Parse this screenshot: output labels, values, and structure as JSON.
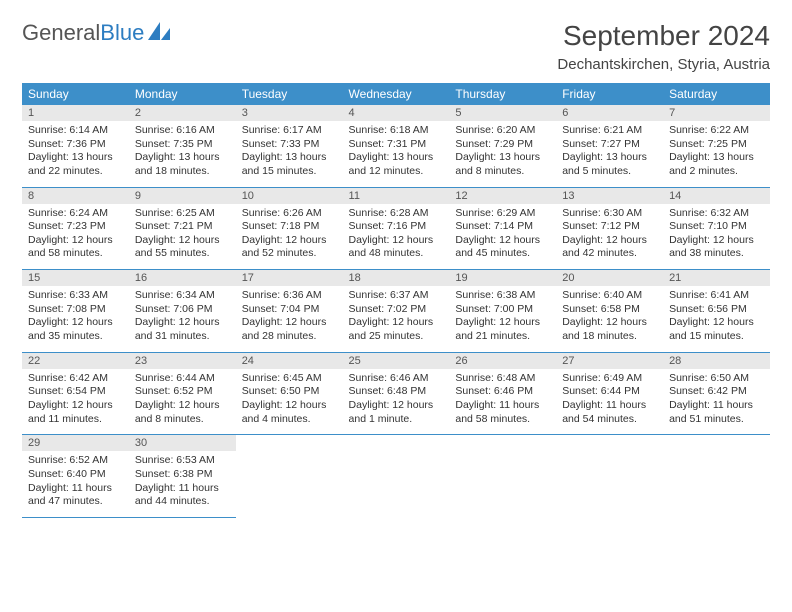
{
  "logo": {
    "text1": "General",
    "text2": "Blue"
  },
  "title": "September 2024",
  "location": "Dechantskirchen, Styria, Austria",
  "dayNames": [
    "Sunday",
    "Monday",
    "Tuesday",
    "Wednesday",
    "Thursday",
    "Friday",
    "Saturday"
  ],
  "colors": {
    "headerBg": "#3d8fc9",
    "headerText": "#ffffff",
    "dayNumBg": "#e8e8e8",
    "border": "#3d8fc9",
    "logoBlue": "#2d7dc1"
  },
  "weeks": [
    [
      {
        "n": "1",
        "sr": "Sunrise: 6:14 AM",
        "ss": "Sunset: 7:36 PM",
        "dl1": "Daylight: 13 hours",
        "dl2": "and 22 minutes."
      },
      {
        "n": "2",
        "sr": "Sunrise: 6:16 AM",
        "ss": "Sunset: 7:35 PM",
        "dl1": "Daylight: 13 hours",
        "dl2": "and 18 minutes."
      },
      {
        "n": "3",
        "sr": "Sunrise: 6:17 AM",
        "ss": "Sunset: 7:33 PM",
        "dl1": "Daylight: 13 hours",
        "dl2": "and 15 minutes."
      },
      {
        "n": "4",
        "sr": "Sunrise: 6:18 AM",
        "ss": "Sunset: 7:31 PM",
        "dl1": "Daylight: 13 hours",
        "dl2": "and 12 minutes."
      },
      {
        "n": "5",
        "sr": "Sunrise: 6:20 AM",
        "ss": "Sunset: 7:29 PM",
        "dl1": "Daylight: 13 hours",
        "dl2": "and 8 minutes."
      },
      {
        "n": "6",
        "sr": "Sunrise: 6:21 AM",
        "ss": "Sunset: 7:27 PM",
        "dl1": "Daylight: 13 hours",
        "dl2": "and 5 minutes."
      },
      {
        "n": "7",
        "sr": "Sunrise: 6:22 AM",
        "ss": "Sunset: 7:25 PM",
        "dl1": "Daylight: 13 hours",
        "dl2": "and 2 minutes."
      }
    ],
    [
      {
        "n": "8",
        "sr": "Sunrise: 6:24 AM",
        "ss": "Sunset: 7:23 PM",
        "dl1": "Daylight: 12 hours",
        "dl2": "and 58 minutes."
      },
      {
        "n": "9",
        "sr": "Sunrise: 6:25 AM",
        "ss": "Sunset: 7:21 PM",
        "dl1": "Daylight: 12 hours",
        "dl2": "and 55 minutes."
      },
      {
        "n": "10",
        "sr": "Sunrise: 6:26 AM",
        "ss": "Sunset: 7:18 PM",
        "dl1": "Daylight: 12 hours",
        "dl2": "and 52 minutes."
      },
      {
        "n": "11",
        "sr": "Sunrise: 6:28 AM",
        "ss": "Sunset: 7:16 PM",
        "dl1": "Daylight: 12 hours",
        "dl2": "and 48 minutes."
      },
      {
        "n": "12",
        "sr": "Sunrise: 6:29 AM",
        "ss": "Sunset: 7:14 PM",
        "dl1": "Daylight: 12 hours",
        "dl2": "and 45 minutes."
      },
      {
        "n": "13",
        "sr": "Sunrise: 6:30 AM",
        "ss": "Sunset: 7:12 PM",
        "dl1": "Daylight: 12 hours",
        "dl2": "and 42 minutes."
      },
      {
        "n": "14",
        "sr": "Sunrise: 6:32 AM",
        "ss": "Sunset: 7:10 PM",
        "dl1": "Daylight: 12 hours",
        "dl2": "and 38 minutes."
      }
    ],
    [
      {
        "n": "15",
        "sr": "Sunrise: 6:33 AM",
        "ss": "Sunset: 7:08 PM",
        "dl1": "Daylight: 12 hours",
        "dl2": "and 35 minutes."
      },
      {
        "n": "16",
        "sr": "Sunrise: 6:34 AM",
        "ss": "Sunset: 7:06 PM",
        "dl1": "Daylight: 12 hours",
        "dl2": "and 31 minutes."
      },
      {
        "n": "17",
        "sr": "Sunrise: 6:36 AM",
        "ss": "Sunset: 7:04 PM",
        "dl1": "Daylight: 12 hours",
        "dl2": "and 28 minutes."
      },
      {
        "n": "18",
        "sr": "Sunrise: 6:37 AM",
        "ss": "Sunset: 7:02 PM",
        "dl1": "Daylight: 12 hours",
        "dl2": "and 25 minutes."
      },
      {
        "n": "19",
        "sr": "Sunrise: 6:38 AM",
        "ss": "Sunset: 7:00 PM",
        "dl1": "Daylight: 12 hours",
        "dl2": "and 21 minutes."
      },
      {
        "n": "20",
        "sr": "Sunrise: 6:40 AM",
        "ss": "Sunset: 6:58 PM",
        "dl1": "Daylight: 12 hours",
        "dl2": "and 18 minutes."
      },
      {
        "n": "21",
        "sr": "Sunrise: 6:41 AM",
        "ss": "Sunset: 6:56 PM",
        "dl1": "Daylight: 12 hours",
        "dl2": "and 15 minutes."
      }
    ],
    [
      {
        "n": "22",
        "sr": "Sunrise: 6:42 AM",
        "ss": "Sunset: 6:54 PM",
        "dl1": "Daylight: 12 hours",
        "dl2": "and 11 minutes."
      },
      {
        "n": "23",
        "sr": "Sunrise: 6:44 AM",
        "ss": "Sunset: 6:52 PM",
        "dl1": "Daylight: 12 hours",
        "dl2": "and 8 minutes."
      },
      {
        "n": "24",
        "sr": "Sunrise: 6:45 AM",
        "ss": "Sunset: 6:50 PM",
        "dl1": "Daylight: 12 hours",
        "dl2": "and 4 minutes."
      },
      {
        "n": "25",
        "sr": "Sunrise: 6:46 AM",
        "ss": "Sunset: 6:48 PM",
        "dl1": "Daylight: 12 hours",
        "dl2": "and 1 minute."
      },
      {
        "n": "26",
        "sr": "Sunrise: 6:48 AM",
        "ss": "Sunset: 6:46 PM",
        "dl1": "Daylight: 11 hours",
        "dl2": "and 58 minutes."
      },
      {
        "n": "27",
        "sr": "Sunrise: 6:49 AM",
        "ss": "Sunset: 6:44 PM",
        "dl1": "Daylight: 11 hours",
        "dl2": "and 54 minutes."
      },
      {
        "n": "28",
        "sr": "Sunrise: 6:50 AM",
        "ss": "Sunset: 6:42 PM",
        "dl1": "Daylight: 11 hours",
        "dl2": "and 51 minutes."
      }
    ],
    [
      {
        "n": "29",
        "sr": "Sunrise: 6:52 AM",
        "ss": "Sunset: 6:40 PM",
        "dl1": "Daylight: 11 hours",
        "dl2": "and 47 minutes."
      },
      {
        "n": "30",
        "sr": "Sunrise: 6:53 AM",
        "ss": "Sunset: 6:38 PM",
        "dl1": "Daylight: 11 hours",
        "dl2": "and 44 minutes."
      },
      null,
      null,
      null,
      null,
      null
    ]
  ]
}
